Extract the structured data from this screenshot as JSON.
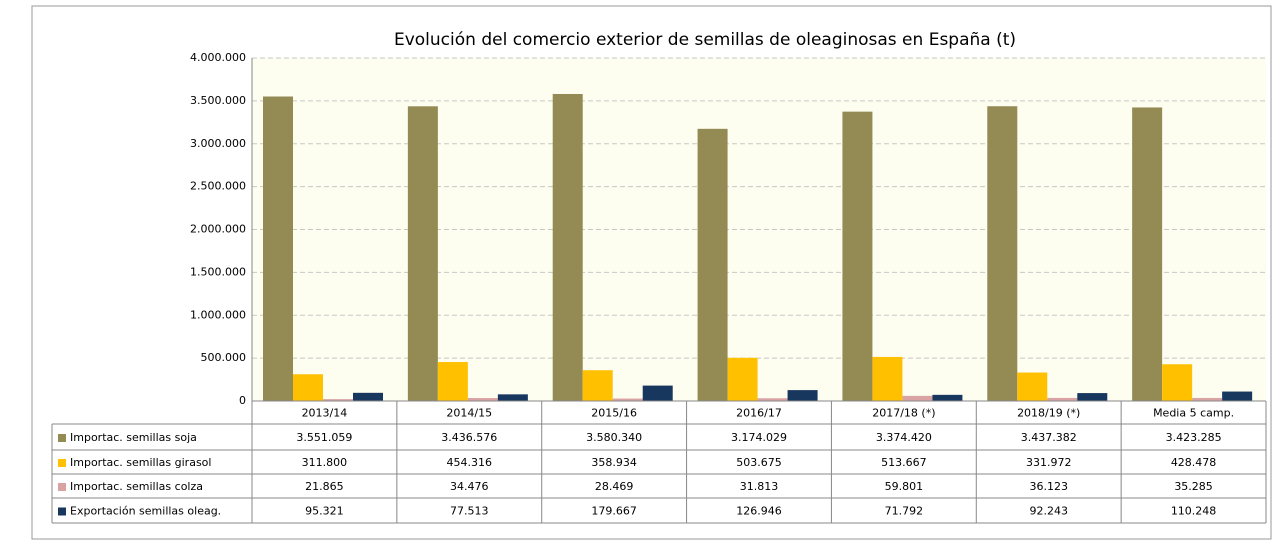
{
  "chart_data": {
    "type": "bar",
    "title": "Evolución del comercio exterior de semillas de oleaginosas en España (t)",
    "categories": [
      "2013/14",
      "2014/15",
      "2015/16",
      "2016/17",
      "2017/18 (*)",
      "2018/19 (*)",
      "Media 5 camp."
    ],
    "series": [
      {
        "name": "Importac. semillas soja",
        "color": "#948a54",
        "values": [
          3551059,
          3436576,
          3580340,
          3174029,
          3374420,
          3437382,
          3423285
        ],
        "value_labels": [
          "3.551.059",
          "3.436.576",
          "3.580.340",
          "3.174.029",
          "3.374.420",
          "3.437.382",
          "3.423.285"
        ]
      },
      {
        "name": "Importac. semillas girasol",
        "color": "#ffc000",
        "values": [
          311800,
          454316,
          358934,
          503675,
          513667,
          331972,
          428478
        ],
        "value_labels": [
          "311.800",
          "454.316",
          "358.934",
          "503.675",
          "513.667",
          "331.972",
          "428.478"
        ]
      },
      {
        "name": "Importac. semillas colza",
        "color": "#d9a3a3",
        "values": [
          21865,
          34476,
          28469,
          31813,
          59801,
          36123,
          35285
        ],
        "value_labels": [
          "21.865",
          "34.476",
          "28.469",
          "31.813",
          "59.801",
          "36.123",
          "35.285"
        ]
      },
      {
        "name": "Exportación semillas oleag.",
        "color": "#17375e",
        "values": [
          95321,
          77513,
          179667,
          126946,
          71792,
          92243,
          110248
        ],
        "value_labels": [
          "95.321",
          "77.513",
          "179.667",
          "126.946",
          "71.792",
          "92.243",
          "110.248"
        ]
      }
    ],
    "ylim": [
      0,
      4000000
    ],
    "yticks": [
      0,
      {
        "value": 500000,
        "label": "500.000"
      },
      {
        "value": 1000000,
        "label": "1.000.000"
      },
      {
        "value": 1500000,
        "label": "1.500.000"
      },
      {
        "value": 2000000,
        "label": "2.000.000"
      },
      {
        "value": 2500000,
        "label": "2.500.000"
      },
      {
        "value": 3000000,
        "label": "3.000.000"
      },
      {
        "value": 3500000,
        "label": "3.500.000"
      },
      {
        "value": 4000000,
        "label": "4.000.000"
      }
    ],
    "grid": true
  }
}
